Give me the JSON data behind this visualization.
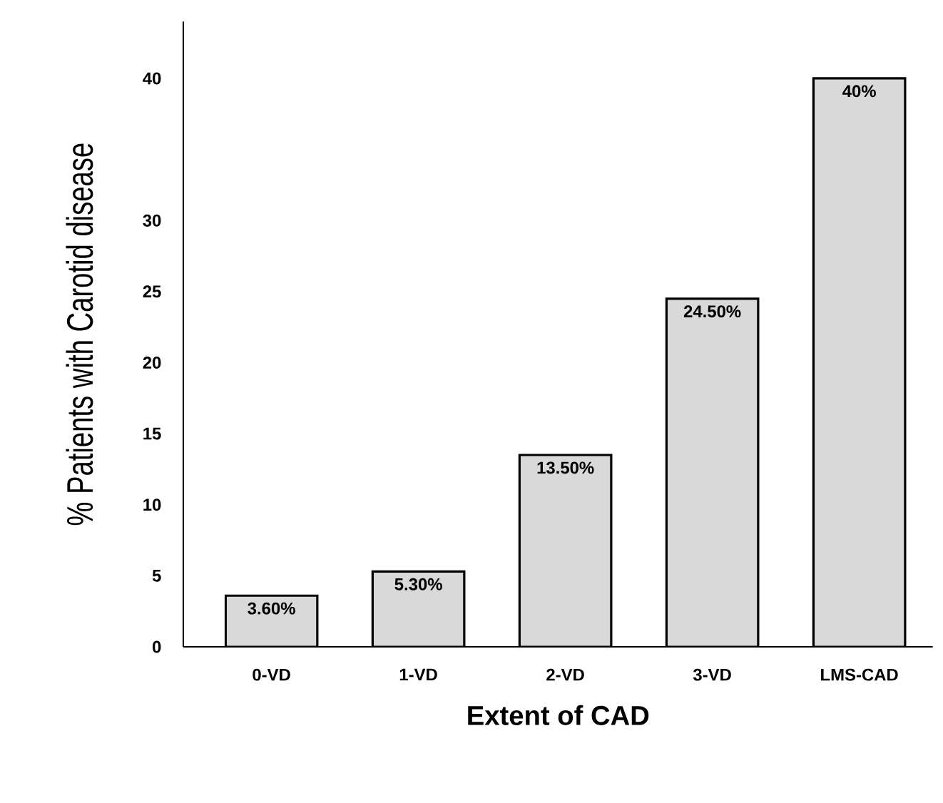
{
  "chart_data": {
    "type": "bar",
    "xlabel": "Extent of CAD",
    "ylabel": "% Patients with Carotid disease",
    "categories": [
      "0-VD",
      "1-VD",
      "2-VD",
      "3-VD",
      "LMS-CAD"
    ],
    "values": [
      3.6,
      5.3,
      13.5,
      24.5,
      40
    ],
    "value_labels": [
      "3.60%",
      "5.30%",
      "13.50%",
      "24.50%",
      "40%"
    ],
    "color": "#d9d9d9",
    "ylim": [
      0,
      44
    ],
    "yticks": [
      0,
      5,
      10,
      15,
      20,
      25,
      30,
      40
    ],
    "grid": false
  }
}
